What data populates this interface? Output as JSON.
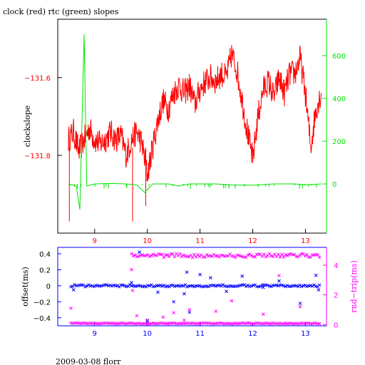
{
  "title": "clock (red) rtc (green) slopes",
  "footer": "2009-03-08 florr",
  "colors": {
    "red": "#ff0000",
    "green": "#00e600",
    "blue": "#0000ff",
    "magenta": "#ff00ff",
    "black": "#000000"
  },
  "chart_data": [
    {
      "type": "line",
      "ylabel": "clockslope",
      "xlim": [
        8.3,
        13.4
      ],
      "ylim_left": [
        -132.0,
        -131.45
      ],
      "ylim_right": [
        -230,
        770
      ],
      "x_ticks": [
        9,
        10,
        11,
        12,
        13
      ],
      "left_ticks": [
        -131.8,
        -131.6
      ],
      "left_tick_labels": [
        "−131.8",
        "−131.6"
      ],
      "right_ticks": [
        0,
        200,
        400,
        600
      ],
      "series": [
        {
          "name": "clock",
          "color": "red",
          "axis": "left",
          "x": [
            8.5,
            8.6,
            8.7,
            8.8,
            8.9,
            9.0,
            9.1,
            9.2,
            9.3,
            9.4,
            9.5,
            9.6,
            9.7,
            9.8,
            9.9,
            10.0,
            10.1,
            10.2,
            10.3,
            10.4,
            10.5,
            10.6,
            10.7,
            10.8,
            10.9,
            11.0,
            11.1,
            11.2,
            11.3,
            11.4,
            11.5,
            11.6,
            11.7,
            11.8,
            11.9,
            12.0,
            12.1,
            12.2,
            12.3,
            12.4,
            12.5,
            12.6,
            12.7,
            12.8,
            12.9,
            13.0,
            13.1,
            13.2,
            13.3
          ],
          "y": [
            -131.76,
            -131.74,
            -131.79,
            -131.76,
            -131.73,
            -131.76,
            -131.77,
            -131.76,
            -131.74,
            -131.76,
            -131.75,
            -131.8,
            -131.76,
            -131.74,
            -131.77,
            -131.85,
            -131.78,
            -131.71,
            -131.66,
            -131.68,
            -131.64,
            -131.62,
            -131.64,
            -131.62,
            -131.67,
            -131.63,
            -131.61,
            -131.6,
            -131.61,
            -131.59,
            -131.6,
            -131.54,
            -131.58,
            -131.66,
            -131.74,
            -131.81,
            -131.7,
            -131.63,
            -131.61,
            -131.65,
            -131.6,
            -131.64,
            -131.59,
            -131.59,
            -131.55,
            -131.64,
            -131.78,
            -131.68,
            -131.64
          ]
        },
        {
          "name": "rtc",
          "color": "green",
          "axis": "right",
          "x": [
            8.5,
            8.65,
            8.72,
            8.8,
            8.85,
            9.0,
            9.3,
            9.6,
            9.8,
            9.95,
            10.1,
            10.4,
            10.6,
            10.8,
            11.0,
            11.3,
            11.6,
            12.0,
            12.4,
            12.8,
            13.0,
            13.3
          ],
          "y": [
            0,
            -8,
            -120,
            700,
            -10,
            0,
            2,
            0,
            -5,
            -40,
            0,
            0,
            -10,
            0,
            0,
            0,
            -5,
            -6,
            0,
            0,
            -4,
            0
          ]
        }
      ]
    },
    {
      "type": "scatter",
      "ylabel": "offset(ms)",
      "ylabel_right": "rnd−trip(ms)",
      "xlim": [
        8.3,
        13.4
      ],
      "ylim_left": [
        -0.5,
        0.48
      ],
      "ylim_right": [
        -0.08,
        5.2
      ],
      "x_ticks": [
        9,
        10,
        11,
        12,
        13
      ],
      "left_ticks": [
        -0.4,
        -0.2,
        0,
        0.2,
        0.4
      ],
      "left_tick_labels": [
        "−0.4",
        "−0.2",
        "0",
        "0.2",
        "0.4"
      ],
      "right_ticks": [
        0,
        2,
        4
      ],
      "series": [
        {
          "name": "offset",
          "color": "blue",
          "axis": "left",
          "x": [
            8.6,
            9.7,
            9.85,
            10.0,
            10.2,
            10.5,
            10.7,
            10.75,
            10.8,
            11.0,
            11.2,
            11.5,
            11.8,
            12.2,
            12.5,
            12.9,
            13.2,
            13.25
          ],
          "y": [
            -0.05,
            0.04,
            0.42,
            -0.44,
            -0.08,
            -0.2,
            -0.1,
            0.17,
            -0.33,
            0.14,
            0.1,
            -0.07,
            0.12,
            -0.02,
            0.06,
            -0.22,
            0.13,
            -0.05
          ]
        },
        {
          "name": "rnd-trip",
          "color": "magenta",
          "axis": "right",
          "x": [
            8.55,
            9.7,
            9.72,
            9.8,
            10.0,
            10.3,
            10.5,
            10.7,
            10.8,
            11.3,
            11.6,
            12.2,
            12.5,
            12.9
          ],
          "y": [
            1.1,
            3.7,
            2.3,
            0.6,
            0.3,
            0.5,
            0.8,
            0.3,
            1.0,
            0.9,
            1.6,
            0.7,
            3.3,
            1.2
          ]
        }
      ]
    }
  ]
}
